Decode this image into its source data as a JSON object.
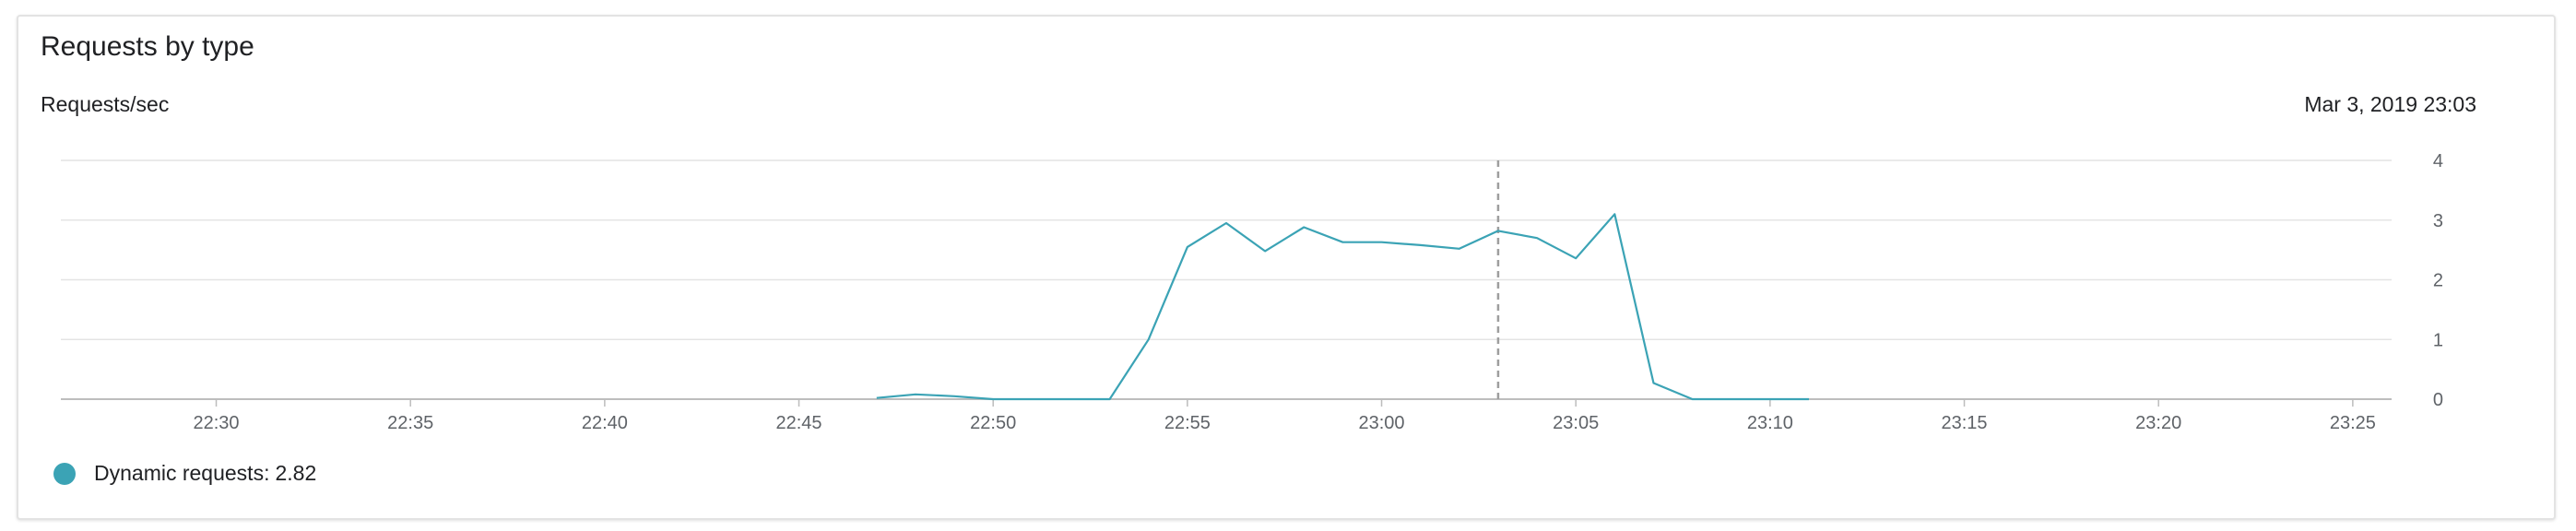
{
  "card": {
    "title": "Requests by type",
    "unit_label": "Requests/sec",
    "timestamp": "Mar 3, 2019 23:03"
  },
  "legend": {
    "label": "Dynamic requests:",
    "value": "2.82"
  },
  "colors": {
    "series": "#3ba3b5",
    "grid": "#e4e4e4",
    "axis": "#bdbdbd",
    "cursor": "#9e9e9e",
    "tick_text": "#5f6368"
  },
  "chart_data": {
    "type": "line",
    "title": "",
    "xlabel": "",
    "ylabel": "Requests/sec",
    "x_domain": [
      "22:26",
      "23:26"
    ],
    "ylim": [
      0,
      4
    ],
    "y_ticks": [
      "0",
      "1",
      "2",
      "3",
      "4"
    ],
    "x_ticks": [
      "22:30",
      "22:35",
      "22:40",
      "22:45",
      "22:50",
      "22:55",
      "23:00",
      "23:05",
      "23:10",
      "23:15",
      "23:20",
      "23:25"
    ],
    "grid": true,
    "y_axis_side": "right",
    "cursor_time": "23:03",
    "series": [
      {
        "name": "Dynamic requests",
        "x": [
          "22:47",
          "22:48",
          "22:49",
          "22:50",
          "22:51",
          "22:52",
          "22:53",
          "22:54",
          "22:55",
          "22:56",
          "22:57",
          "22:58",
          "22:59",
          "23:00",
          "23:01",
          "23:02",
          "23:03",
          "23:04",
          "23:05",
          "23:06",
          "23:07",
          "23:08",
          "23:09",
          "23:10",
          "23:11"
        ],
        "values": [
          0.02,
          0.08,
          0.05,
          0.0,
          0.0,
          0.0,
          0.0,
          1.0,
          2.55,
          2.95,
          2.48,
          2.88,
          2.63,
          2.63,
          2.58,
          2.52,
          2.82,
          2.7,
          2.36,
          3.1,
          0.27,
          0.0,
          0.0,
          0.0,
          0.0
        ]
      }
    ]
  }
}
